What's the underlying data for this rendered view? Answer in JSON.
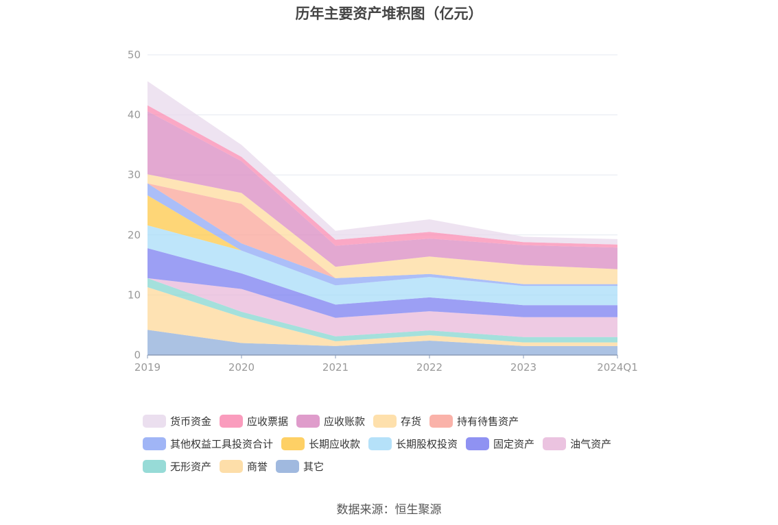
{
  "chart_data": {
    "type": "area",
    "stacked": true,
    "title": "历年主要资产堆积图（亿元）",
    "categories": [
      "2019",
      "2020",
      "2021",
      "2022",
      "2023",
      "2024Q1"
    ],
    "ylim": [
      0,
      50
    ],
    "yticks": [
      0,
      10,
      20,
      30,
      40,
      50
    ],
    "xlabel": "",
    "ylabel": "",
    "legend_position": "bottom",
    "series": [
      {
        "name": "其它",
        "color": "#8fadd9",
        "values": [
          4.2,
          2.0,
          1.5,
          2.4,
          1.5,
          1.5
        ]
      },
      {
        "name": "商誉",
        "color": "#fdd89a",
        "values": [
          7.1,
          4.3,
          0.8,
          0.9,
          0.6,
          0.6
        ]
      },
      {
        "name": "无形资产",
        "color": "#85d5d0",
        "values": [
          1.5,
          0.9,
          0.8,
          0.8,
          0.9,
          0.9
        ]
      },
      {
        "name": "油气资产",
        "color": "#e8b8da",
        "values": [
          0.0,
          3.8,
          3.1,
          3.2,
          3.3,
          3.3
        ]
      },
      {
        "name": "固定资产",
        "color": "#7b7ff0",
        "values": [
          5.0,
          2.6,
          2.2,
          2.3,
          2.0,
          2.0
        ]
      },
      {
        "name": "长期股权投资",
        "color": "#a8dcf8",
        "values": [
          3.8,
          3.8,
          3.2,
          3.4,
          3.2,
          3.2
        ]
      },
      {
        "name": "长期应收款",
        "color": "#fec84a",
        "values": [
          5.0,
          0.0,
          0.0,
          0.0,
          0.0,
          0.0
        ]
      },
      {
        "name": "其他权益工具投资合计",
        "color": "#8fa8f5",
        "values": [
          2.0,
          1.2,
          1.2,
          0.5,
          0.3,
          0.3
        ]
      },
      {
        "name": "持有待售资产",
        "color": "#f9a59a",
        "values": [
          0.0,
          6.6,
          0.0,
          0.0,
          0.0,
          0.0
        ]
      },
      {
        "name": "存货",
        "color": "#fedb9d",
        "values": [
          1.5,
          1.8,
          1.9,
          2.9,
          3.2,
          2.5
        ]
      },
      {
        "name": "应收账款",
        "color": "#d98bc2",
        "values": [
          10.5,
          5.3,
          3.5,
          3.0,
          3.3,
          3.6
        ]
      },
      {
        "name": "应收票据",
        "color": "#f98bb2",
        "values": [
          1.0,
          0.7,
          1.0,
          1.1,
          0.5,
          0.5
        ]
      },
      {
        "name": "货币资金",
        "color": "#e8d9ec",
        "values": [
          4.0,
          2.0,
          1.5,
          2.1,
          0.9,
          0.9
        ]
      }
    ]
  },
  "legend_order": [
    "货币资金",
    "应收票据",
    "应收账款",
    "存货",
    "持有待售资产",
    "其他权益工具投资合计",
    "长期应收款",
    "长期股权投资",
    "固定资产",
    "油气资产",
    "无形资产",
    "商誉",
    "其它"
  ],
  "source": "数据来源：恒生聚源"
}
